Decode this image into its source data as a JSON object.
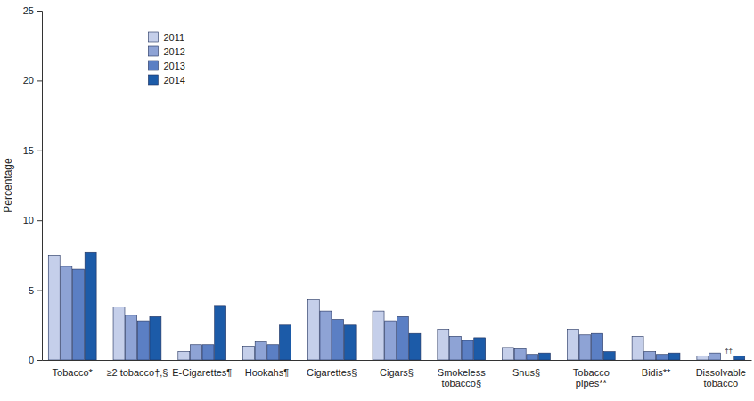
{
  "chart_data": {
    "type": "bar",
    "y_label": "Percentage",
    "categories": [
      "Tobacco*",
      "≥2 tobacco†,§",
      "E-Cigarettes¶",
      "Hookahs¶",
      "Cigarettes§",
      "Cigars§",
      "Smokeless tobacco§",
      "Snus§",
      "Tobacco pipes**",
      "Bidis**",
      "Dissolvable tobacco"
    ],
    "series": [
      {
        "name": "2011",
        "color": "#c5cfea",
        "values": [
          7.5,
          3.8,
          0.6,
          1.0,
          4.3,
          3.5,
          2.2,
          0.9,
          2.2,
          1.7,
          0.3
        ]
      },
      {
        "name": "2012",
        "color": "#8ea3d5",
        "values": [
          6.7,
          3.2,
          1.1,
          1.3,
          3.5,
          2.8,
          1.7,
          0.8,
          1.8,
          0.6,
          0.5
        ]
      },
      {
        "name": "2013",
        "color": "#5b7fc4",
        "values": [
          6.5,
          2.8,
          1.1,
          1.1,
          2.9,
          3.1,
          1.4,
          0.4,
          1.9,
          0.4,
          null
        ]
      },
      {
        "name": "2014",
        "color": "#1c5ba8",
        "values": [
          7.7,
          3.1,
          3.9,
          2.5,
          2.5,
          1.9,
          1.6,
          0.5,
          0.6,
          0.5,
          0.3
        ]
      }
    ],
    "annotations": [
      {
        "text": "††",
        "category": 10,
        "series": 2
      }
    ],
    "ylim": [
      0,
      25
    ],
    "yticks": [
      0,
      5,
      10,
      15,
      20,
      25
    ],
    "grid": false,
    "legend": "upper left"
  }
}
